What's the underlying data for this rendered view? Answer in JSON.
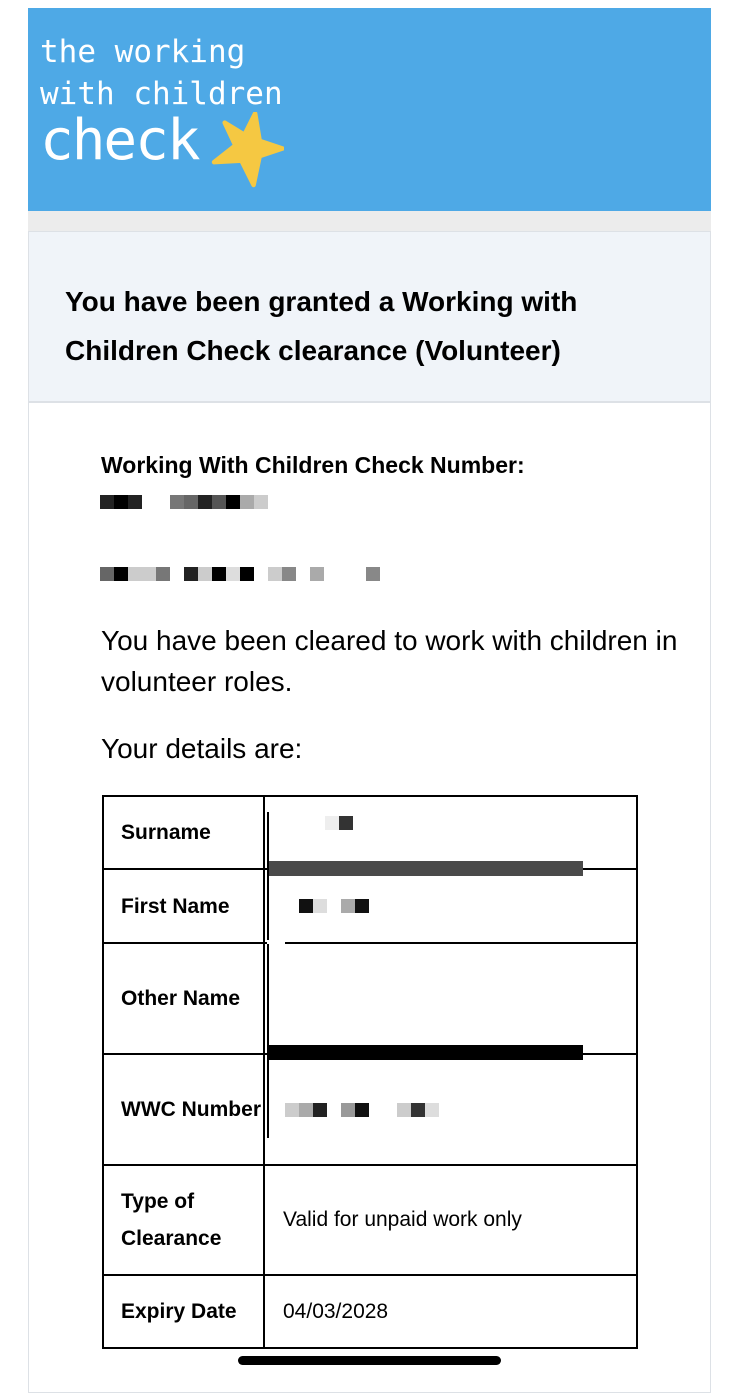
{
  "logo": {
    "line1": "the working",
    "line2": "with children",
    "line3": "check",
    "icon": "star-icon",
    "bg_color": "#4ea9e6",
    "star_color": "#f5c842"
  },
  "heading": "You have been granted a Working with Children Check clearance (Volunteer)",
  "check_number_label": "Working With Children Check Number:",
  "cleared_text": "You have been cleared to work with children in volunteer roles.",
  "details_intro": "Your details are:",
  "details": [
    {
      "label": "Surname",
      "value": ""
    },
    {
      "label": "First Name",
      "value": ""
    },
    {
      "label": "Other Name",
      "value": ""
    },
    {
      "label": "WWC Number",
      "value": ""
    },
    {
      "label": "Type of Clearance",
      "value": "Valid for unpaid work only"
    },
    {
      "label": "Expiry Date",
      "value": "04/03/2028"
    }
  ]
}
